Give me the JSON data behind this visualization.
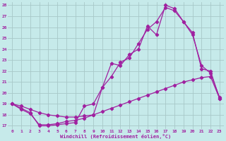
{
  "xlabel": "Windchill (Refroidissement éolien,°C)",
  "bg_color": "#c6eaea",
  "grid_color": "#a8c8c8",
  "line_color": "#a020a0",
  "xlim": [
    -0.5,
    23.5
  ],
  "ylim": [
    16.7,
    28.3
  ],
  "xticks": [
    0,
    1,
    2,
    3,
    4,
    5,
    6,
    7,
    8,
    9,
    10,
    11,
    12,
    13,
    14,
    15,
    16,
    17,
    18,
    19,
    20,
    21,
    22,
    23
  ],
  "yticks": [
    17,
    18,
    19,
    20,
    21,
    22,
    23,
    24,
    25,
    26,
    27,
    28
  ],
  "line1_x": [
    0,
    1,
    2,
    3,
    4,
    5,
    6,
    7,
    8,
    9,
    10,
    11,
    12,
    13,
    14,
    15,
    16,
    17,
    18,
    19,
    20,
    21,
    22,
    23
  ],
  "line1_y": [
    19.0,
    18.6,
    18.2,
    17.0,
    17.0,
    17.1,
    17.2,
    17.3,
    18.8,
    19.0,
    20.5,
    22.7,
    22.5,
    23.5,
    24.0,
    26.1,
    25.3,
    28.0,
    27.7,
    26.5,
    25.5,
    22.2,
    22.0,
    19.5
  ],
  "line2_x": [
    0,
    1,
    2,
    3,
    4,
    5,
    6,
    7,
    8,
    9,
    10,
    11,
    12,
    13,
    14,
    15,
    16,
    17,
    18,
    19,
    20,
    21,
    22,
    23
  ],
  "line2_y": [
    19.0,
    18.5,
    18.1,
    17.1,
    17.1,
    17.2,
    17.4,
    17.5,
    17.7,
    18.0,
    20.5,
    21.5,
    22.8,
    23.2,
    24.5,
    25.8,
    26.5,
    27.8,
    27.5,
    26.5,
    25.3,
    22.5,
    21.8,
    19.6
  ],
  "line3_x": [
    0,
    1,
    2,
    3,
    4,
    5,
    6,
    7,
    8,
    9,
    10,
    11,
    12,
    13,
    14,
    15,
    16,
    17,
    18,
    19,
    20,
    21,
    22,
    23
  ],
  "line3_y": [
    19.0,
    18.8,
    18.5,
    18.2,
    18.0,
    17.9,
    17.8,
    17.8,
    17.9,
    18.0,
    18.3,
    18.6,
    18.9,
    19.2,
    19.5,
    19.8,
    20.1,
    20.4,
    20.7,
    21.0,
    21.2,
    21.4,
    21.5,
    19.5
  ]
}
